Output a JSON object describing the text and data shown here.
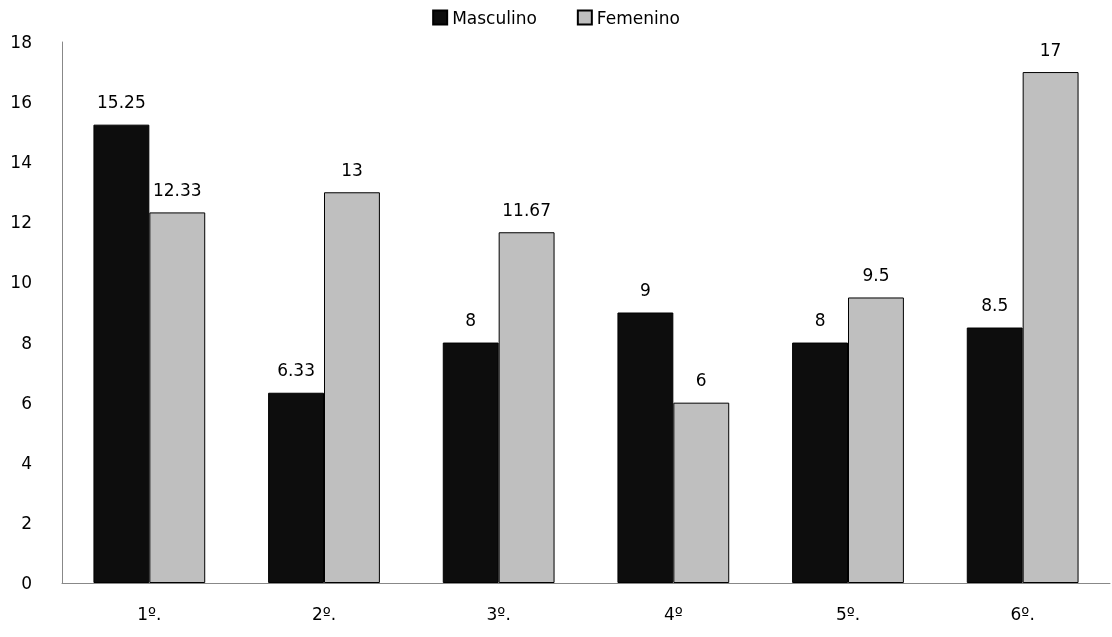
{
  "chart_data": {
    "type": "bar",
    "categories": [
      "1º.",
      "2º.",
      "3º.",
      "4º",
      "5º.",
      "6º."
    ],
    "series": [
      {
        "name": "Masculino",
        "color": "#0d0d0d",
        "values": [
          15.25,
          6.33,
          8,
          9,
          8,
          8.5
        ]
      },
      {
        "name": "Femenino",
        "color": "#bfbfbf",
        "values": [
          12.33,
          13,
          11.67,
          6,
          9.5,
          17
        ]
      }
    ],
    "ylim": [
      0,
      18
    ],
    "yticks": [
      0,
      2,
      4,
      6,
      8,
      10,
      12,
      14,
      16,
      18
    ],
    "grid": false,
    "legend": "top",
    "data_labels": true
  }
}
